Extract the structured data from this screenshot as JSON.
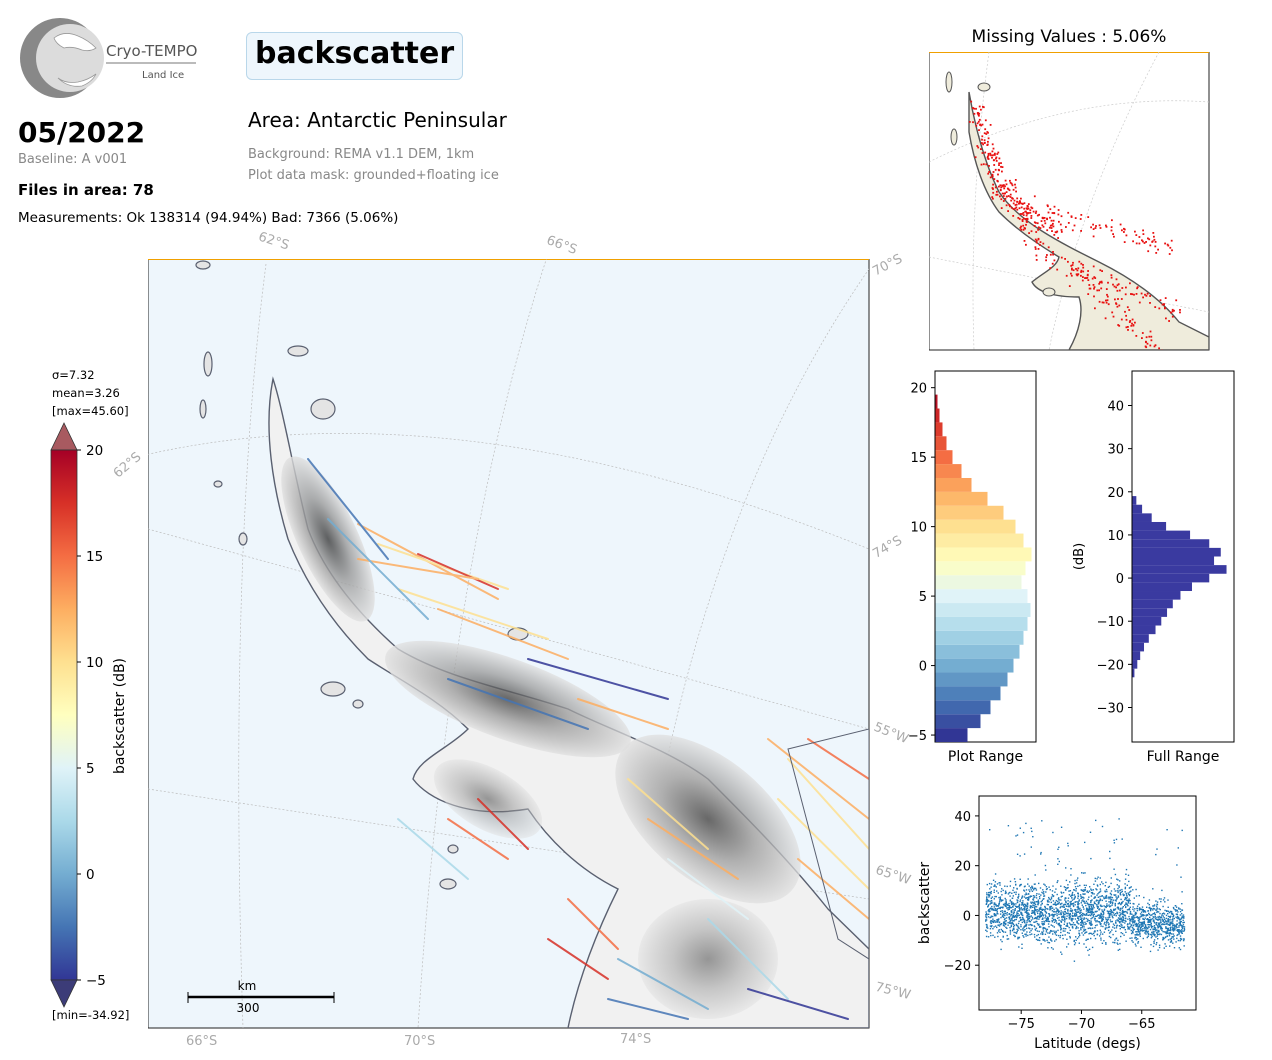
{
  "header": {
    "logo_text": "Cryo-TEMPO",
    "logo_subtext": "Land Ice",
    "parameter": "backscatter",
    "date": "05/2022",
    "baseline": "Baseline: A v001",
    "files": "Files in area: 78",
    "measurements": "Measurements: Ok 138314 (94.94%) Bad: 7366 (5.06%)",
    "area": "Area: Antarctic Peninsular",
    "background": "Background: REMA v1.1 DEM, 1km",
    "mask": "Plot data mask: grounded+floating ice"
  },
  "colorbar": {
    "label": "backscatter (dB)",
    "ticks": [
      "20",
      "15",
      "10",
      "5",
      "0",
      "−5"
    ],
    "stats_sigma": "σ=7.32",
    "stats_mean": "mean=3.26",
    "stats_max": "[max=45.60]",
    "stats_min": "[min=-34.92]",
    "vmin": -5,
    "vmax": 20
  },
  "main_map": {
    "lat_labels": [
      "62°S",
      "66°S",
      "70°S",
      "62°S",
      "74°S",
      "66°S",
      "70°S",
      "74°S"
    ],
    "lon_labels": [
      "55°W",
      "65°W",
      "75°W"
    ],
    "scalebar_unit": "km",
    "scalebar_value": "300",
    "ocean_color": "#eef6fc",
    "land_color": "#f0f0f0"
  },
  "mini_map": {
    "title": "Missing Values : 5.06%",
    "land_color": "#efecdc",
    "missing_color": "#e81010"
  },
  "chart_data": [
    {
      "type": "bar",
      "name": "plot-range-histogram",
      "xlabel": "Plot Range",
      "ylabel": "",
      "ylim": [
        -5.5,
        21.2
      ],
      "yticks": [
        "20",
        "15",
        "10",
        "5",
        "0",
        "−5"
      ],
      "bin_centers": [
        -5,
        -4,
        -3,
        -2,
        -1,
        0,
        1,
        2,
        3,
        4,
        5,
        6,
        7,
        8,
        9,
        10,
        11,
        12,
        13,
        14,
        15,
        16,
        17,
        18,
        19
      ],
      "relative_counts": [
        0.32,
        0.45,
        0.55,
        0.65,
        0.72,
        0.78,
        0.84,
        0.88,
        0.92,
        0.95,
        0.92,
        0.86,
        0.9,
        0.96,
        0.88,
        0.8,
        0.68,
        0.52,
        0.36,
        0.26,
        0.17,
        0.11,
        0.07,
        0.04,
        0.02
      ]
    },
    {
      "type": "bar",
      "name": "full-range-histogram",
      "xlabel": "Full Range",
      "ylabel": "(dB)",
      "ylim": [
        -38,
        48
      ],
      "yticks": [
        "40",
        "30",
        "20",
        "10",
        "0",
        "−10",
        "−20",
        "−30"
      ],
      "color": "#3a3aa0",
      "bin_centers": [
        -22,
        -20,
        -18,
        -16,
        -14,
        -12,
        -10,
        -8,
        -6,
        -4,
        -2,
        0,
        2,
        4,
        6,
        8,
        10,
        12,
        14,
        16,
        18
      ],
      "relative_counts": [
        0.02,
        0.05,
        0.08,
        0.12,
        0.17,
        0.24,
        0.3,
        0.36,
        0.42,
        0.5,
        0.62,
        0.8,
        0.98,
        0.85,
        0.92,
        0.8,
        0.6,
        0.35,
        0.2,
        0.1,
        0.04
      ]
    },
    {
      "type": "scatter",
      "name": "latitude-scatter",
      "xlabel": "Latitude (degs)",
      "ylabel": "backscatter",
      "xlim": [
        -78.5,
        -60.5
      ],
      "ylim": [
        -38,
        48
      ],
      "xticks": [
        "−75",
        "−70",
        "−65"
      ],
      "yticks": [
        "40",
        "20",
        "0",
        "−20"
      ],
      "color": "#1f77b4",
      "clusters": [
        {
          "x_range": [
            -78,
            -74
          ],
          "y_center": 2,
          "y_spread": 12
        },
        {
          "x_range": [
            -74,
            -70
          ],
          "y_center": 1,
          "y_spread": 13
        },
        {
          "x_range": [
            -70,
            -66
          ],
          "y_center": 2,
          "y_spread": 14
        },
        {
          "x_range": [
            -66,
            -61.5
          ],
          "y_center": -3,
          "y_spread": 9
        }
      ]
    }
  ]
}
